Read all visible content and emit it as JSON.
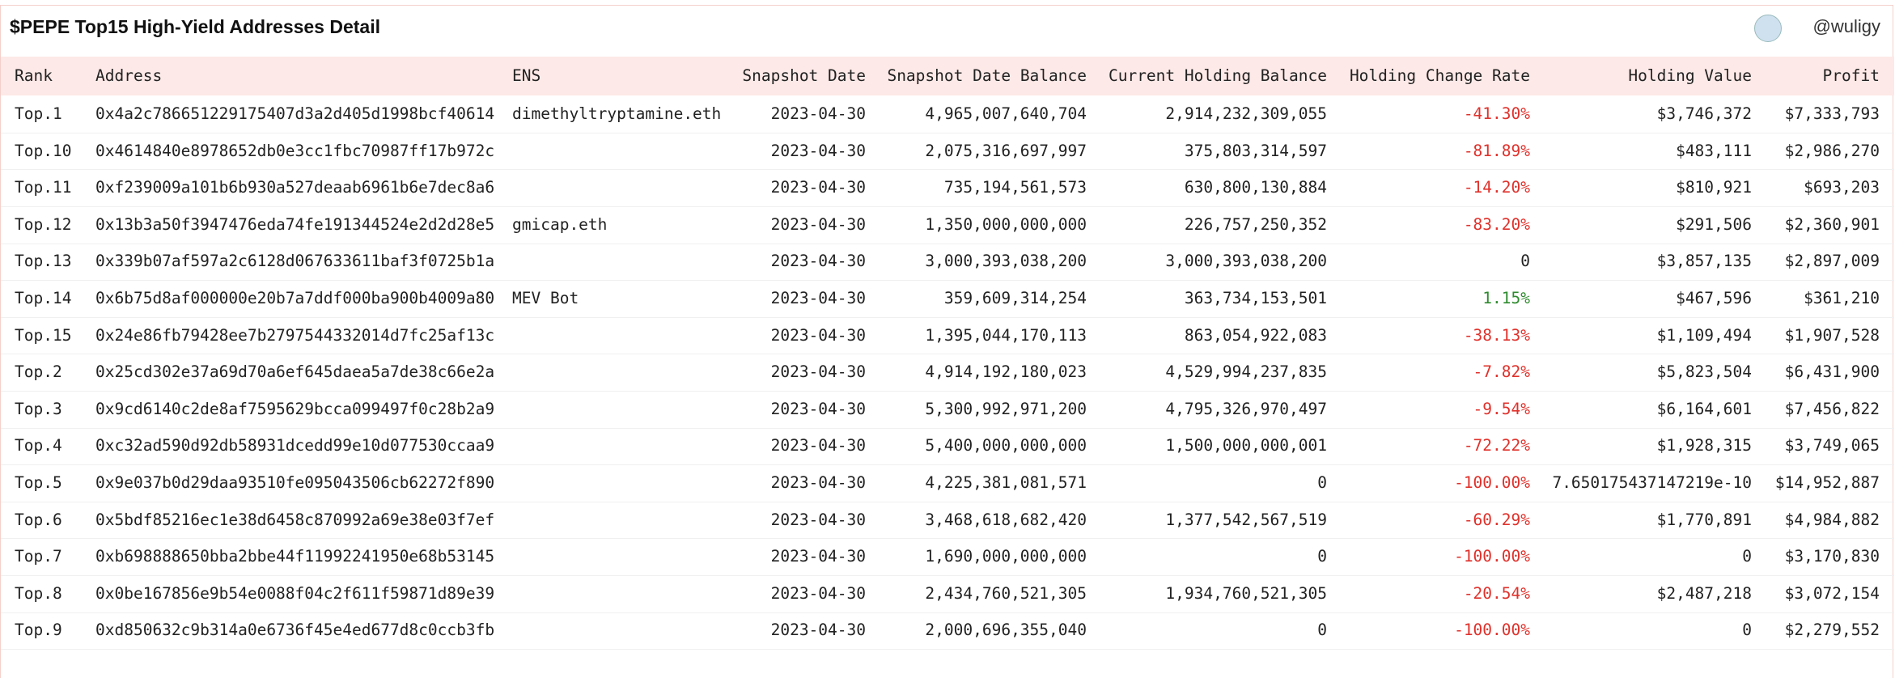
{
  "header": {
    "title": "$PEPE Top15 High-Yield Addresses Detail",
    "user": "@wuligy"
  },
  "table": {
    "columns": [
      "Rank",
      "Address",
      "ENS",
      "Snapshot Date",
      "Snapshot Date Balance",
      "Current Holding Balance",
      "Holding Change Rate",
      "Holding Value",
      "Profit"
    ],
    "rows": [
      [
        "Top.1",
        "0x4a2c786651229175407d3a2d405d1998bcf40614",
        "dimethyltryptamine.eth",
        "2023-04-30",
        "4,965,007,640,704",
        "2,914,232,309,055",
        "-41.30%",
        "$3,746,372",
        "$7,333,793"
      ],
      [
        "Top.10",
        "0x4614840e8978652db0e3cc1fbc70987ff17b972c",
        null,
        "2023-04-30",
        "2,075,316,697,997",
        "375,803,314,597",
        "-81.89%",
        "$483,111",
        "$2,986,270"
      ],
      [
        "Top.11",
        "0xf239009a101b6b930a527deaab6961b6e7dec8a6",
        null,
        "2023-04-30",
        "735,194,561,573",
        "630,800,130,884",
        "-14.20%",
        "$810,921",
        "$693,203"
      ],
      [
        "Top.12",
        "0x13b3a50f3947476eda74fe191344524e2d2d28e5",
        "gmicap.eth",
        "2023-04-30",
        "1,350,000,000,000",
        "226,757,250,352",
        "-83.20%",
        "$291,506",
        "$2,360,901"
      ],
      [
        "Top.13",
        "0x339b07af597a2c6128d067633611baf3f0725b1a",
        null,
        "2023-04-30",
        "3,000,393,038,200",
        "3,000,393,038,200",
        "0",
        "$3,857,135",
        "$2,897,009"
      ],
      [
        "Top.14",
        "0x6b75d8af000000e20b7a7ddf000ba900b4009a80",
        "MEV Bot",
        "2023-04-30",
        "359,609,314,254",
        "363,734,153,501",
        "1.15%",
        "$467,596",
        "$361,210"
      ],
      [
        "Top.15",
        "0x24e86fb79428ee7b2797544332014d7fc25af13c",
        null,
        "2023-04-30",
        "1,395,044,170,113",
        "863,054,922,083",
        "-38.13%",
        "$1,109,494",
        "$1,907,528"
      ],
      [
        "Top.2",
        "0x25cd302e37a69d70a6ef645daea5a7de38c66e2a",
        null,
        "2023-04-30",
        "4,914,192,180,023",
        "4,529,994,237,835",
        "-7.82%",
        "$5,823,504",
        "$6,431,900"
      ],
      [
        "Top.3",
        "0x9cd6140c2de8af7595629bcca099497f0c28b2a9",
        null,
        "2023-04-30",
        "5,300,992,971,200",
        "4,795,326,970,497",
        "-9.54%",
        "$6,164,601",
        "$7,456,822"
      ],
      [
        "Top.4",
        "0xc32ad590d92db58931dcedd99e10d077530ccaa9",
        null,
        "2023-04-30",
        "5,400,000,000,000",
        "1,500,000,000,001",
        "-72.22%",
        "$1,928,315",
        "$3,749,065"
      ],
      [
        "Top.5",
        "0x9e037b0d29daa93510fe095043506cb62272f890",
        null,
        "2023-04-30",
        "4,225,381,081,571",
        "0",
        "-100.00%",
        "7.650175437147219e-10",
        "$14,952,887"
      ],
      [
        "Top.6",
        "0x5bdf85216ec1e38d6458c870992a69e38e03f7ef",
        null,
        "2023-04-30",
        "3,468,618,682,420",
        "1,377,542,567,519",
        "-60.29%",
        "$1,770,891",
        "$4,984,882"
      ],
      [
        "Top.7",
        "0xb698888650bba2bbe44f11992241950e68b53145",
        null,
        "2023-04-30",
        "1,690,000,000,000",
        "0",
        "-100.00%",
        "0",
        "$3,170,830"
      ],
      [
        "Top.8",
        "0x0be167856e9b54e0088f04c2f611f59871d89e39",
        null,
        "2023-04-30",
        "2,434,760,521,305",
        "1,934,760,521,305",
        "-20.54%",
        "$2,487,218",
        "$3,072,154"
      ],
      [
        "Top.9",
        "0xd850632c9b314a0e6736f45e4ed677d8c0ccb3fb",
        null,
        "2023-04-30",
        "2,000,696,355,040",
        "0",
        "-100.00%",
        "0",
        "$2,279,552"
      ]
    ]
  }
}
